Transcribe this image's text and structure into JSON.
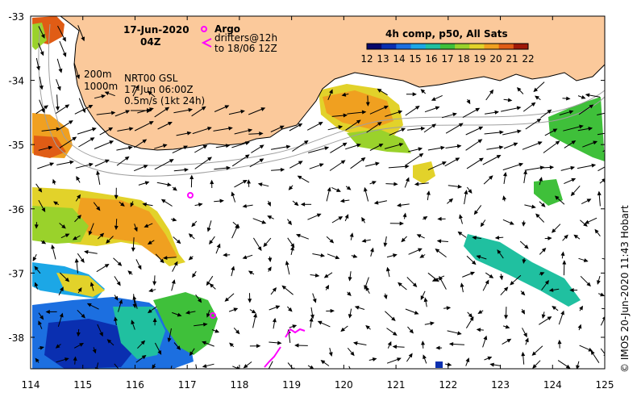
{
  "header": {
    "date": "17-Jun-2020",
    "time": "04Z"
  },
  "legend": {
    "argo_label": "Argo",
    "drifters_label": "drifters@12h",
    "drifters_to": "to 18/06 12Z",
    "argo_color": "#ff00ff",
    "drifter_color": "#ff00ff"
  },
  "colorbar": {
    "title": "4h comp, p50, All Sats",
    "ticks": [
      "12",
      "13",
      "14",
      "15",
      "16",
      "17",
      "18",
      "19",
      "20",
      "21",
      "22"
    ],
    "colors": [
      "#08086b",
      "#0a2fb0",
      "#1c6fe0",
      "#1ca7e6",
      "#20c0a0",
      "#3fc03a",
      "#9ad22b",
      "#e2d22a",
      "#f0a020",
      "#e05c15",
      "#a01808"
    ]
  },
  "isobaths": {
    "label_200": "200m",
    "label_1000": "1000m"
  },
  "source": {
    "line1": "NRT00 GSL",
    "line2": "17-Jun 06:00Z",
    "line3": "0.5m/s (1kt 24h)"
  },
  "axes": {
    "x_ticks": [
      "114",
      "115",
      "116",
      "117",
      "118",
      "119",
      "120",
      "121",
      "122",
      "123",
      "124",
      "125"
    ],
    "y_ticks": [
      "-33",
      "-34",
      "-35",
      "-36",
      "-37",
      "-38"
    ]
  },
  "credit": "© IMOS 20-Jun-2020 11:43 Hobart",
  "colors": {
    "land": "#fbc99b",
    "ocean": "#ffffff",
    "arrow": "#000000",
    "isobath": "#a0a0a0"
  }
}
